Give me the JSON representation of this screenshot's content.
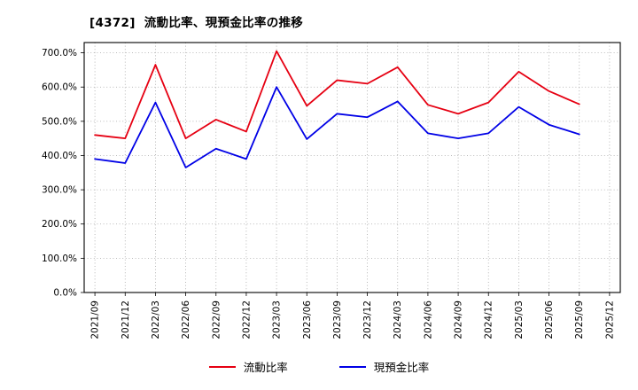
{
  "chart_data": {
    "type": "line",
    "title": "[4372]  流動比率、現預金比率の推移",
    "categories": [
      "2021/09",
      "2021/12",
      "2022/03",
      "2022/06",
      "2022/09",
      "2022/12",
      "2023/03",
      "2023/06",
      "2023/09",
      "2023/12",
      "2024/03",
      "2024/06",
      "2024/09",
      "2024/12",
      "2025/03",
      "2025/06",
      "2025/09",
      "2025/12"
    ],
    "series": [
      {
        "name": "流動比率",
        "color": "#e60012",
        "values": [
          460,
          450,
          665,
          450,
          505,
          470,
          705,
          545,
          620,
          610,
          658,
          548,
          522,
          555,
          645,
          588,
          550
        ]
      },
      {
        "name": "現預金比率",
        "color": "#0000e6",
        "values": [
          390,
          378,
          555,
          365,
          420,
          390,
          600,
          448,
          522,
          512,
          558,
          465,
          450,
          465,
          542,
          490,
          462
        ]
      }
    ],
    "ylabel": "",
    "xlabel": "",
    "ylim": [
      0,
      700
    ],
    "ytick_step": 100,
    "ytick_suffix": "%",
    "display_ymax": 730,
    "grid": true,
    "grid_color": "#a6a6a6",
    "axis_color": "#000000",
    "legend_position": "bottom"
  }
}
